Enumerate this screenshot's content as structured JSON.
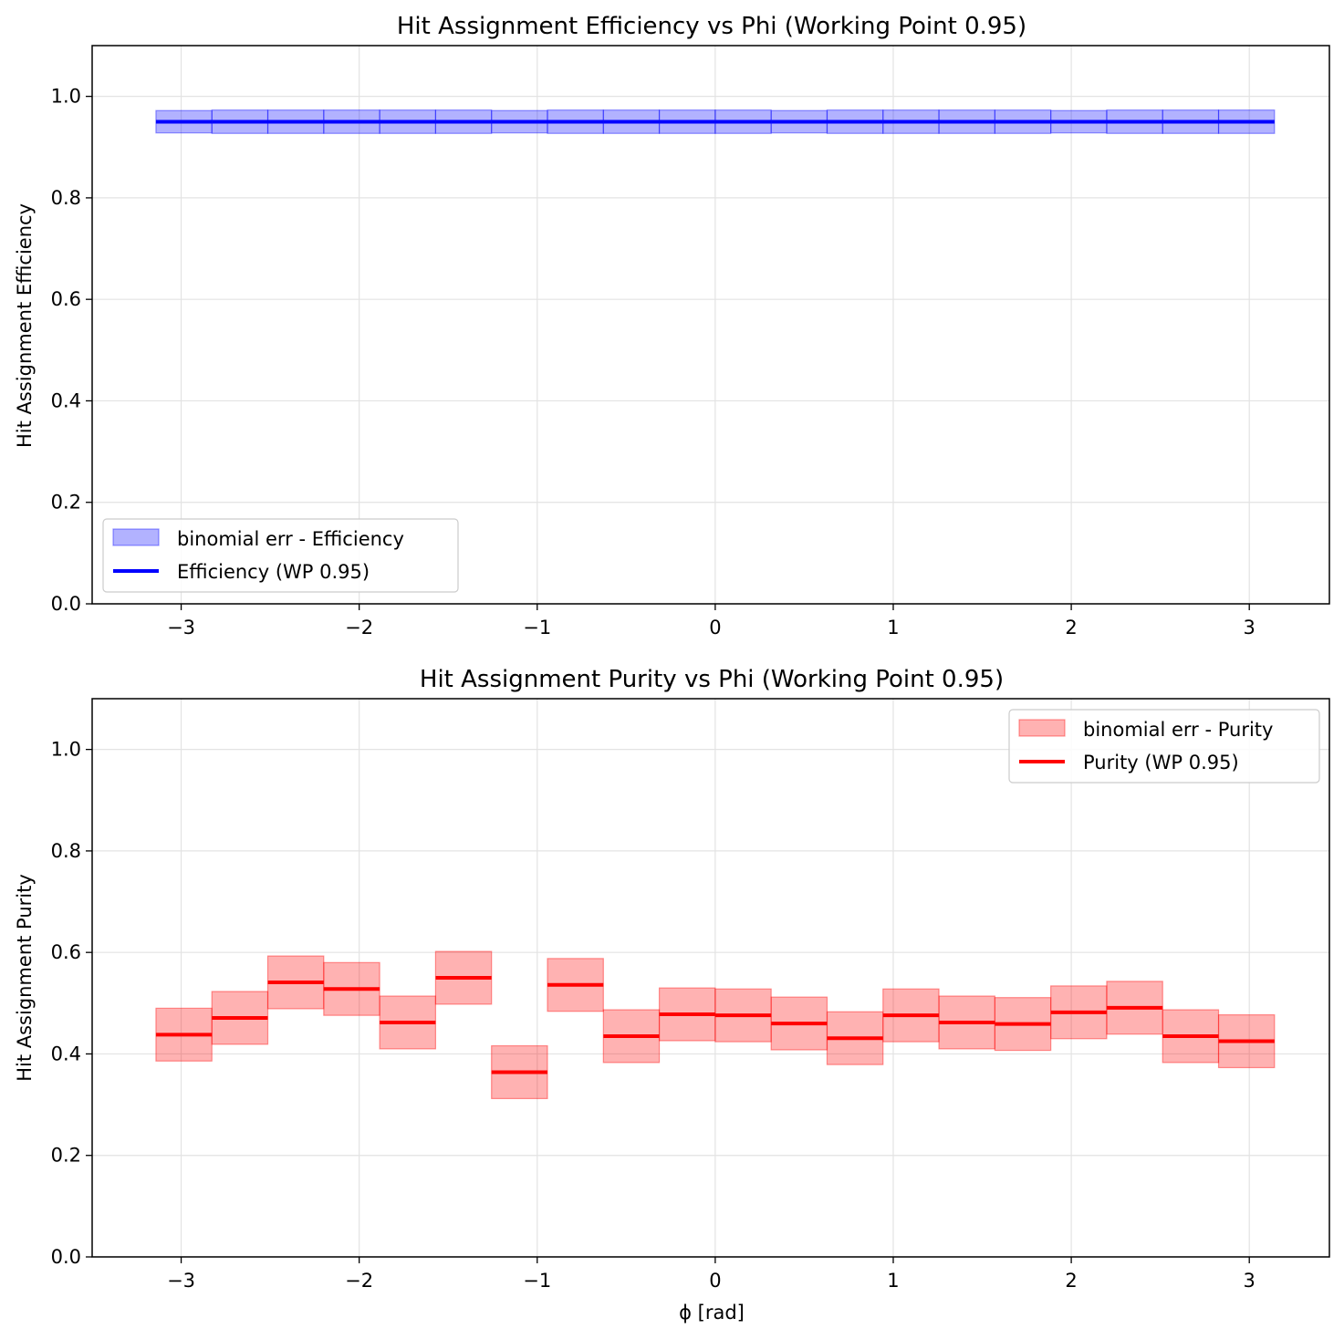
{
  "chart_data": [
    {
      "type": "step",
      "title": "Hit Assignment Efficiency vs Phi (Working Point 0.95)",
      "xlabel": "",
      "ylabel": "Hit Assignment Efficiency",
      "xlim": [
        -3.5,
        3.45
      ],
      "ylim": [
        0.0,
        1.1
      ],
      "xticks": [
        -3,
        -2,
        -1,
        0,
        1,
        2,
        3
      ],
      "xtick_labels": [
        "−3",
        "−2",
        "−1",
        "0",
        "1",
        "2",
        "3"
      ],
      "yticks": [
        0.0,
        0.2,
        0.4,
        0.6,
        0.8,
        1.0
      ],
      "ytick_labels": [
        "0.0",
        "0.2",
        "0.4",
        "0.6",
        "0.8",
        "1.0"
      ],
      "grid": true,
      "legend_position": "lower-left",
      "bin_edges": [
        -3.1416,
        -2.8274,
        -2.5133,
        -2.1991,
        -1.885,
        -1.5708,
        -1.2566,
        -0.9425,
        -0.6283,
        -0.3142,
        0.0,
        0.3142,
        0.6283,
        0.9425,
        1.2566,
        1.5708,
        1.885,
        2.1991,
        2.5133,
        2.8274,
        3.1416
      ],
      "series": [
        {
          "name": "Efficiency (WP 0.95)",
          "color": "#0000ff",
          "values": [
            0.95,
            0.95,
            0.95,
            0.95,
            0.95,
            0.95,
            0.95,
            0.95,
            0.95,
            0.95,
            0.95,
            0.95,
            0.95,
            0.95,
            0.95,
            0.95,
            0.95,
            0.95,
            0.95,
            0.95
          ]
        }
      ],
      "error_band": {
        "name": "binomial err - Efficiency",
        "color": "#0000ff",
        "lower": [
          0.928,
          0.927,
          0.927,
          0.927,
          0.927,
          0.927,
          0.928,
          0.927,
          0.927,
          0.927,
          0.927,
          0.928,
          0.927,
          0.927,
          0.927,
          0.927,
          0.928,
          0.927,
          0.927,
          0.927
        ],
        "upper": [
          0.972,
          0.973,
          0.973,
          0.973,
          0.973,
          0.973,
          0.972,
          0.973,
          0.973,
          0.973,
          0.973,
          0.972,
          0.973,
          0.973,
          0.973,
          0.973,
          0.972,
          0.973,
          0.973,
          0.973
        ]
      }
    },
    {
      "type": "step",
      "title": "Hit Assignment Purity vs Phi (Working Point 0.95)",
      "xlabel": "ϕ [rad]",
      "ylabel": "Hit Assignment Purity",
      "xlim": [
        -3.5,
        3.45
      ],
      "ylim": [
        0.0,
        1.1
      ],
      "xticks": [
        -3,
        -2,
        -1,
        0,
        1,
        2,
        3
      ],
      "xtick_labels": [
        "−3",
        "−2",
        "−1",
        "0",
        "1",
        "2",
        "3"
      ],
      "yticks": [
        0.0,
        0.2,
        0.4,
        0.6,
        0.8,
        1.0
      ],
      "ytick_labels": [
        "0.0",
        "0.2",
        "0.4",
        "0.6",
        "0.8",
        "1.0"
      ],
      "grid": true,
      "legend_position": "upper-right",
      "bin_edges": [
        -3.1416,
        -2.8274,
        -2.5133,
        -2.1991,
        -1.885,
        -1.5708,
        -1.2566,
        -0.9425,
        -0.6283,
        -0.3142,
        0.0,
        0.3142,
        0.6283,
        0.9425,
        1.2566,
        1.5708,
        1.885,
        2.1991,
        2.5133,
        2.8274,
        3.1416
      ],
      "series": [
        {
          "name": "Purity (WP 0.95)",
          "color": "#ff0000",
          "values": [
            0.438,
            0.471,
            0.541,
            0.528,
            0.462,
            0.55,
            0.364,
            0.536,
            0.435,
            0.478,
            0.476,
            0.46,
            0.431,
            0.476,
            0.462,
            0.459,
            0.482,
            0.491,
            0.435,
            0.425
          ]
        }
      ],
      "error_band": {
        "name": "binomial err - Purity",
        "color": "#ff0000",
        "lower": [
          0.386,
          0.419,
          0.489,
          0.476,
          0.41,
          0.498,
          0.312,
          0.484,
          0.383,
          0.426,
          0.424,
          0.408,
          0.379,
          0.424,
          0.41,
          0.407,
          0.43,
          0.439,
          0.383,
          0.373
        ],
        "upper": [
          0.49,
          0.523,
          0.593,
          0.58,
          0.514,
          0.602,
          0.416,
          0.588,
          0.487,
          0.53,
          0.528,
          0.512,
          0.483,
          0.528,
          0.514,
          0.511,
          0.534,
          0.543,
          0.487,
          0.477
        ]
      }
    }
  ]
}
